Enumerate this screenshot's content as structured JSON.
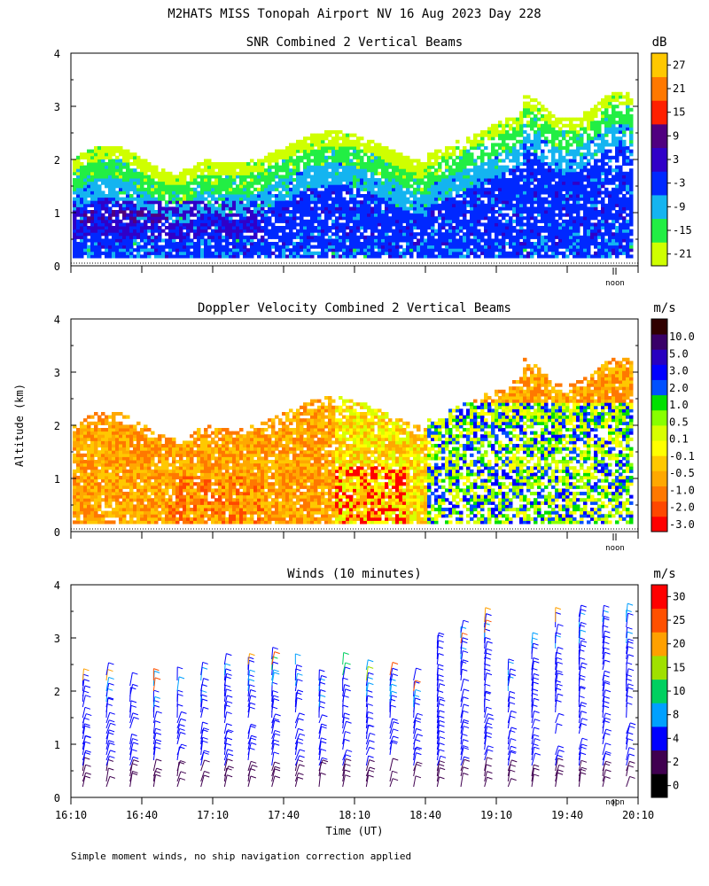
{
  "title": "M2HATS MISS Tonopah Airport NV  16 Aug 2023 Day 228",
  "ylabel": "Altitude (km)",
  "xlabel": "Time (UT)",
  "footnote": "Simple moment winds, no ship navigation correction applied",
  "noon_label": "noon",
  "colors": {
    "snr": [
      "#cfff00",
      "#22ee44",
      "#14b4f0",
      "#0028ff",
      "#3000c8",
      "#500080",
      "#ff2000",
      "#ff7800",
      "#ffc800"
    ],
    "doppler": [
      "#ff0000",
      "#ff4800",
      "#ff7800",
      "#ffa800",
      "#ffc800",
      "#ffff00",
      "#d8ff00",
      "#88ff00",
      "#00e000",
      "#0050ff",
      "#0000ff",
      "#2800c0",
      "#380068",
      "#300000"
    ],
    "winds": [
      "#000000",
      "#400050",
      "#0000ff",
      "#00a0ff",
      "#00d060",
      "#a0e000",
      "#ffa000",
      "#ff5000",
      "#ff0000"
    ]
  },
  "chart_data": [
    {
      "type": "heatmap",
      "title": "SNR Combined 2 Vertical Beams",
      "units": "dB",
      "ylabel": "Altitude (km)",
      "ylim": [
        0,
        4
      ],
      "yticks": [
        "0",
        "1",
        "2",
        "3",
        "4"
      ],
      "xlim": [
        "16:10",
        "20:10"
      ],
      "colorbar_labels": [
        "-21",
        "-15",
        "-9",
        "-3",
        "3",
        "9",
        "15",
        "21",
        "27"
      ],
      "grid": false
    },
    {
      "type": "heatmap",
      "title": "Doppler Velocity Combined 2 Vertical Beams",
      "units": "m/s",
      "ylabel": "Altitude (km)",
      "ylim": [
        0,
        4
      ],
      "yticks": [
        "0",
        "1",
        "2",
        "3",
        "4"
      ],
      "xlim": [
        "16:10",
        "20:10"
      ],
      "colorbar_labels": [
        "-3.0",
        "-2.0",
        "-1.0",
        "-0.5",
        "-0.1",
        "0.1",
        "0.5",
        "1.0",
        "2.0",
        "3.0",
        "5.0",
        "10.0"
      ],
      "grid": false
    },
    {
      "type": "scatter",
      "subtype": "wind_barbs",
      "title": "Winds (10 minutes)",
      "units": "m/s",
      "ylabel": "Altitude (km)",
      "xlabel": "Time (UT)",
      "ylim": [
        0,
        4
      ],
      "yticks": [
        "0",
        "1",
        "2",
        "3",
        "4"
      ],
      "xticks": [
        "16:10",
        "16:40",
        "17:10",
        "17:40",
        "18:10",
        "18:40",
        "19:10",
        "19:40",
        "20:10"
      ],
      "colorbar_labels": [
        "0",
        "2",
        "4",
        "8",
        "10",
        "15",
        "20",
        "25",
        "30"
      ],
      "profile_times_min": [
        5,
        15,
        25,
        35,
        45,
        55,
        65,
        75,
        85,
        95,
        105,
        115,
        125,
        135,
        145,
        155,
        165,
        175,
        185,
        195,
        205,
        215,
        225,
        235
      ],
      "profile_top_km": [
        2.3,
        2.4,
        2.3,
        2.3,
        2.3,
        2.4,
        2.6,
        2.6,
        2.7,
        2.6,
        2.3,
        2.6,
        2.5,
        2.4,
        2.3,
        3.0,
        3.2,
        3.4,
        2.6,
        3.0,
        3.4,
        3.5,
        3.6,
        3.5
      ],
      "grid": false
    }
  ]
}
